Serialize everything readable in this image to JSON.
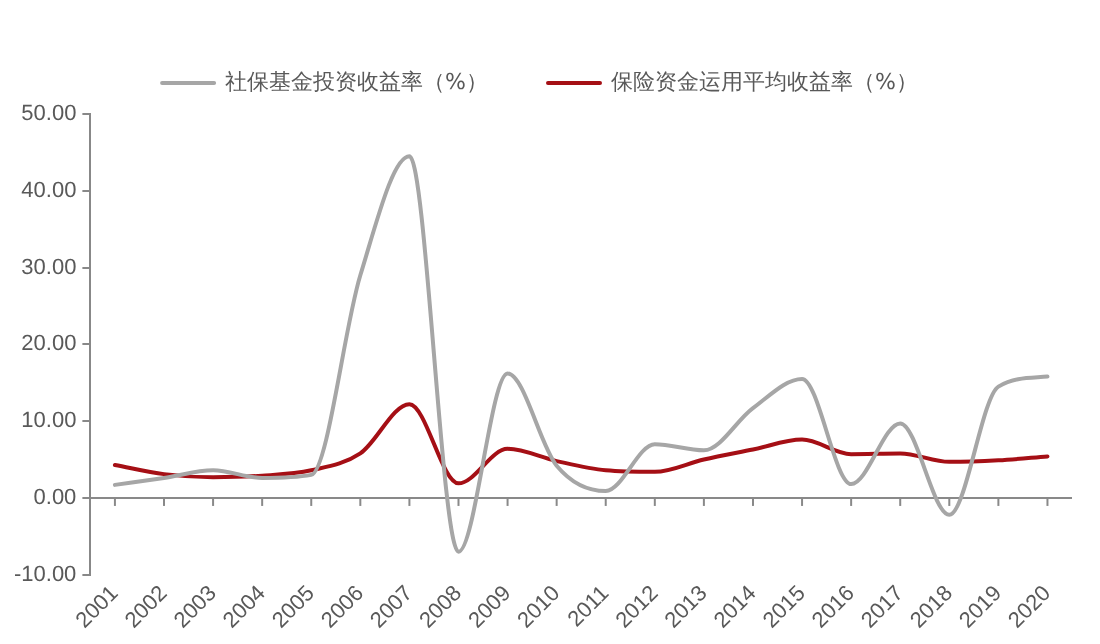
{
  "chart_data": {
    "type": "line",
    "categories": [
      "2001",
      "2002",
      "2003",
      "2004",
      "2005",
      "2006",
      "2007",
      "2008",
      "2009",
      "2010",
      "2011",
      "2012",
      "2013",
      "2014",
      "2015",
      "2016",
      "2017",
      "2018",
      "2019",
      "2020"
    ],
    "series": [
      {
        "name": "社保基金投资收益率（%）",
        "color": "#a6a6a6",
        "values": [
          1.7,
          2.6,
          3.6,
          2.6,
          3.0,
          29.0,
          44.5,
          -7.0,
          16.2,
          4.2,
          0.9,
          7.0,
          6.2,
          11.7,
          15.5,
          1.8,
          9.7,
          -2.2,
          14.5,
          15.8
        ]
      },
      {
        "name": "保险资金运用平均收益率（%）",
        "color": "#a50f15",
        "values": [
          4.3,
          3.1,
          2.7,
          2.9,
          3.6,
          5.8,
          12.2,
          1.9,
          6.4,
          4.8,
          3.6,
          3.4,
          5.0,
          6.3,
          7.6,
          5.7,
          5.8,
          4.7,
          4.9,
          5.4
        ]
      }
    ],
    "ylim": [
      -10,
      50
    ],
    "yticks": [
      {
        "value": -10,
        "label": "-10.00"
      },
      {
        "value": 0,
        "label": "0.00"
      },
      {
        "value": 10,
        "label": "10.00"
      },
      {
        "value": 20,
        "label": "20.00"
      },
      {
        "value": 30,
        "label": "30.00"
      },
      {
        "value": 40,
        "label": "40.00"
      },
      {
        "value": 50,
        "label": "50.00"
      }
    ],
    "ref_lines": [
      {
        "axis": "y",
        "value": 0,
        "color": "#898989"
      }
    ],
    "grid": false,
    "legend": "top",
    "marker": "none",
    "line_style": "solid"
  }
}
